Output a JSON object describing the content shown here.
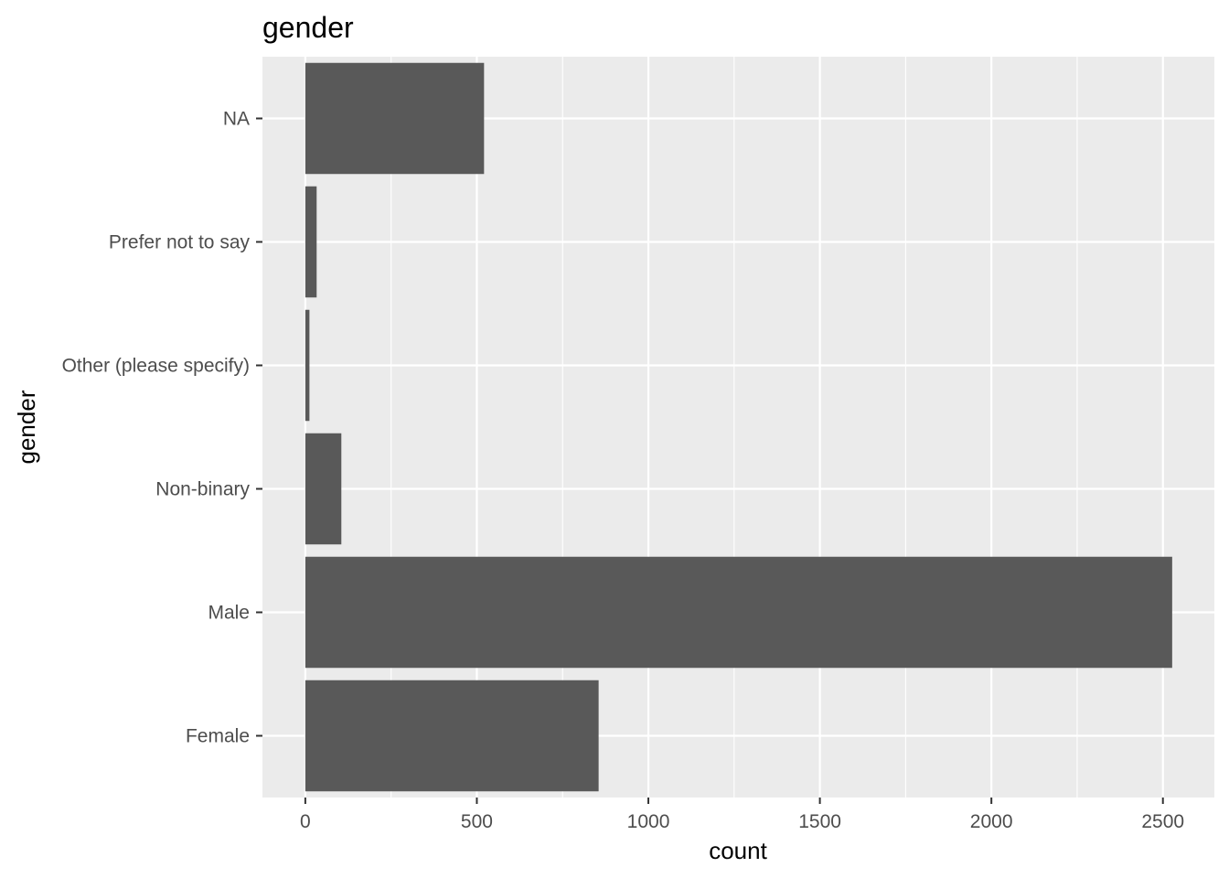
{
  "chart_data": {
    "type": "bar",
    "orientation": "horizontal",
    "title": "gender",
    "xlabel": "count",
    "ylabel": "gender",
    "categories": [
      "Female",
      "Male",
      "Non-binary",
      "Other (please specify)",
      "Prefer not to say",
      "NA"
    ],
    "values": [
      855,
      2527,
      105,
      12,
      33,
      521
    ],
    "xlim": [
      -125,
      2650
    ],
    "xticks": [
      0,
      500,
      1000,
      1500,
      2000,
      2500
    ],
    "grid": true,
    "legend": "none",
    "colors": {
      "bar": "#595959",
      "panel": "#ebebeb",
      "grid": "#ffffff",
      "tick": "#333333",
      "tick_label": "#4d4d4d"
    }
  }
}
